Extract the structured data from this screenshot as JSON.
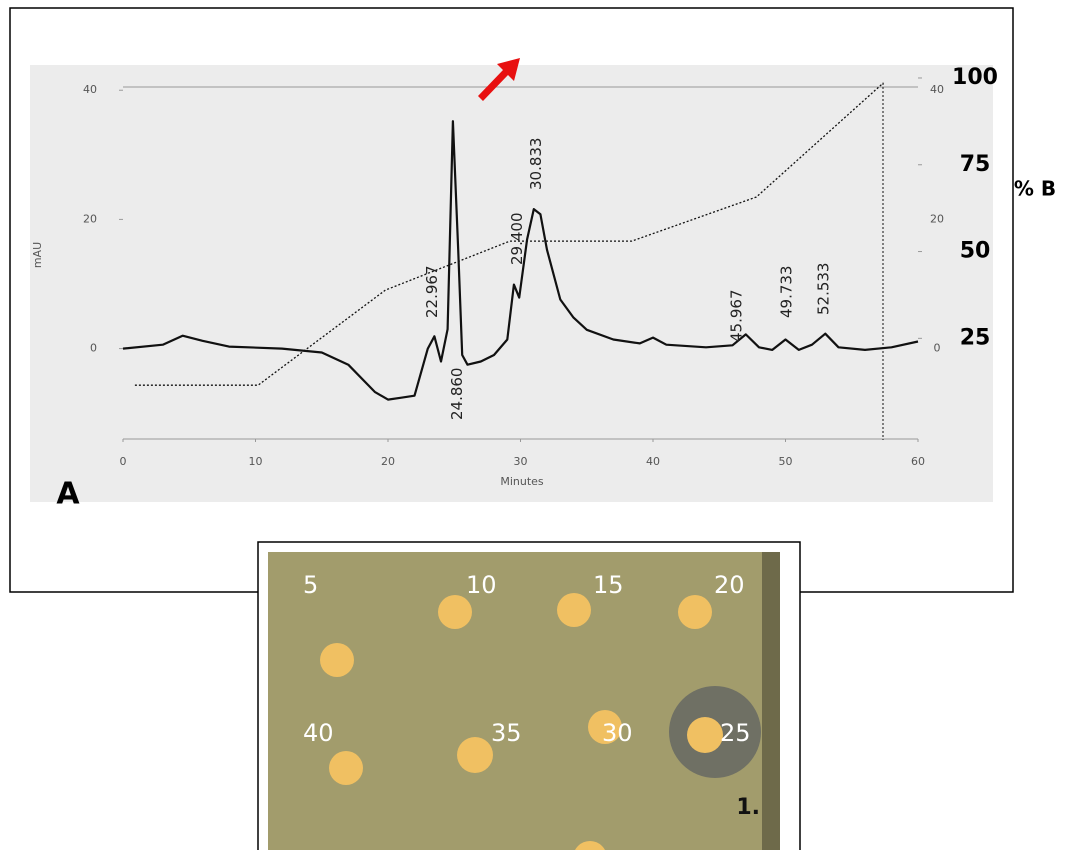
{
  "chart_data": {
    "type": "line",
    "x_label": "Minutes",
    "y_label": "mAU",
    "y2_label": "% B",
    "xlim": [
      0,
      60
    ],
    "xticks": [
      0,
      10,
      20,
      30,
      40,
      50,
      60
    ],
    "ylim": [
      -14,
      40.5
    ],
    "yticks": [
      0,
      20,
      40
    ],
    "y2lim": [
      -4,
      97.4
    ],
    "y2ticks": [
      25,
      50,
      75,
      100
    ],
    "series": [
      {
        "color": "#111111",
        "style": "solid",
        "x": [
          0,
          3,
          4.5,
          6,
          8,
          12,
          15,
          17,
          19,
          20,
          21,
          22,
          23,
          23.5,
          24,
          24.5,
          24.9,
          25.3,
          25.6,
          26,
          27,
          28,
          29,
          29.5,
          29.9,
          30.5,
          31,
          31.5,
          32,
          33,
          34,
          35,
          37,
          39,
          40,
          41,
          44,
          46,
          47,
          48,
          49,
          50,
          51,
          52,
          53,
          54,
          56,
          58,
          60
        ],
        "values": [
          0,
          0.6,
          2,
          1.2,
          0.3,
          0,
          -0.6,
          -2.5,
          -6.7,
          -7.9,
          -7.6,
          -7.3,
          0,
          1.9,
          -2,
          3,
          35.2,
          15.3,
          -1,
          -2.5,
          -2,
          -1,
          1.4,
          9.9,
          7.9,
          16.9,
          21.6,
          20.8,
          15.3,
          7.6,
          4.8,
          2.9,
          1.4,
          0.8,
          1.7,
          0.6,
          0.2,
          0.5,
          2.2,
          0.2,
          -0.2,
          1.4,
          -0.2,
          0.6,
          2.3,
          0.2,
          -0.2,
          0.2,
          1.1
        ]
      },
      {
        "color": "#111111",
        "style": "dotted",
        "axis": "y2",
        "x": [
          0.9,
          10.2,
          19.8,
          29.2,
          38.4,
          47.8,
          57.4
        ],
        "values": [
          11.5,
          11.5,
          38.9,
          53,
          53,
          65.7,
          98.6
        ]
      }
    ],
    "peak_labels": [
      {
        "x": 22.967,
        "label": "22.967"
      },
      {
        "x": 24.86,
        "label": "24.860"
      },
      {
        "x": 29.4,
        "label": "29.400"
      },
      {
        "x": 30.833,
        "label": "30.833"
      },
      {
        "x": 45.967,
        "label": "45.967"
      },
      {
        "x": 49.733,
        "label": "49.733"
      },
      {
        "x": 52.533,
        "label": "52.533"
      }
    ]
  },
  "panel_label": "A",
  "plate": {
    "labels": [
      "5",
      "10",
      "15",
      "20",
      "40",
      "35",
      "30",
      "25"
    ],
    "corner_label": "1."
  }
}
